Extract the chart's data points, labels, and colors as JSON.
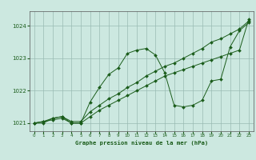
{
  "title": "Graphe pression niveau de la mer (hPa)",
  "background_color": "#cce8e0",
  "plot_bg_color": "#cce8e0",
  "grid_color": "#99bbb3",
  "line_color": "#1a5c1a",
  "marker_color": "#1a5c1a",
  "xlim": [
    -0.5,
    23.5
  ],
  "ylim": [
    1020.75,
    1024.45
  ],
  "yticks": [
    1021,
    1022,
    1023,
    1024
  ],
  "xticks": [
    0,
    1,
    2,
    3,
    4,
    5,
    6,
    7,
    8,
    9,
    10,
    11,
    12,
    13,
    14,
    15,
    16,
    17,
    18,
    19,
    20,
    21,
    22,
    23
  ],
  "series": [
    [
      1021.0,
      1021.0,
      1021.15,
      1021.2,
      1021.0,
      1021.0,
      1021.65,
      1022.1,
      1022.5,
      1022.7,
      1023.15,
      1023.25,
      1023.3,
      1023.1,
      1022.55,
      1021.55,
      1021.5,
      1021.55,
      1021.7,
      1022.3,
      1022.35,
      1023.35,
      1023.85,
      1024.1
    ],
    [
      1021.0,
      1021.05,
      1021.15,
      1021.2,
      1021.05,
      1021.05,
      1021.35,
      1021.55,
      1021.75,
      1021.9,
      1022.1,
      1022.25,
      1022.45,
      1022.6,
      1022.75,
      1022.85,
      1023.0,
      1023.15,
      1023.3,
      1023.5,
      1023.6,
      1023.75,
      1023.9,
      1024.15
    ],
    [
      1021.0,
      1021.05,
      1021.1,
      1021.15,
      1021.0,
      1021.0,
      1021.2,
      1021.4,
      1021.55,
      1021.7,
      1021.85,
      1022.0,
      1022.15,
      1022.3,
      1022.45,
      1022.55,
      1022.65,
      1022.75,
      1022.85,
      1022.95,
      1023.05,
      1023.15,
      1023.25,
      1024.2
    ]
  ]
}
